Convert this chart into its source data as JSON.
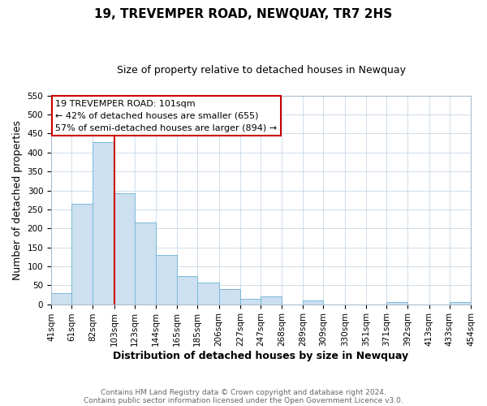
{
  "title": "19, TREVEMPER ROAD, NEWQUAY, TR7 2HS",
  "subtitle": "Size of property relative to detached houses in Newquay",
  "xlabel": "Distribution of detached houses by size in Newquay",
  "ylabel": "Number of detached properties",
  "footnote1": "Contains HM Land Registry data © Crown copyright and database right 2024.",
  "footnote2": "Contains public sector information licensed under the Open Government Licence v3.0.",
  "bar_edges": [
    41,
    61,
    82,
    103,
    123,
    144,
    165,
    185,
    206,
    227,
    247,
    268,
    289,
    309,
    330,
    351,
    371,
    392,
    413,
    433,
    454
  ],
  "bar_heights": [
    30,
    265,
    428,
    292,
    215,
    130,
    75,
    58,
    40,
    15,
    20,
    0,
    10,
    0,
    0,
    0,
    5,
    0,
    0,
    5
  ],
  "bar_color": "#cce0f0",
  "bar_edge_color": "#7ab8d9",
  "property_line_x": 103,
  "property_line_color": "#cc0000",
  "ylim": [
    0,
    550
  ],
  "yticks": [
    0,
    50,
    100,
    150,
    200,
    250,
    300,
    350,
    400,
    450,
    500,
    550
  ],
  "annotation_title": "19 TREVEMPER ROAD: 101sqm",
  "annotation_line1": "← 42% of detached houses are smaller (655)",
  "annotation_line2": "57% of semi-detached houses are larger (894) →",
  "tick_labels": [
    "41sqm",
    "61sqm",
    "82sqm",
    "103sqm",
    "123sqm",
    "144sqm",
    "165sqm",
    "185sqm",
    "206sqm",
    "227sqm",
    "247sqm",
    "268sqm",
    "289sqm",
    "309sqm",
    "330sqm",
    "351sqm",
    "371sqm",
    "392sqm",
    "413sqm",
    "433sqm",
    "454sqm"
  ],
  "grid_color": "#c8d8e8",
  "title_fontsize": 11,
  "subtitle_fontsize": 9,
  "xlabel_fontsize": 9,
  "ylabel_fontsize": 9,
  "tick_fontsize": 7.5,
  "footnote_fontsize": 6.5,
  "footnote_color": "#666666"
}
